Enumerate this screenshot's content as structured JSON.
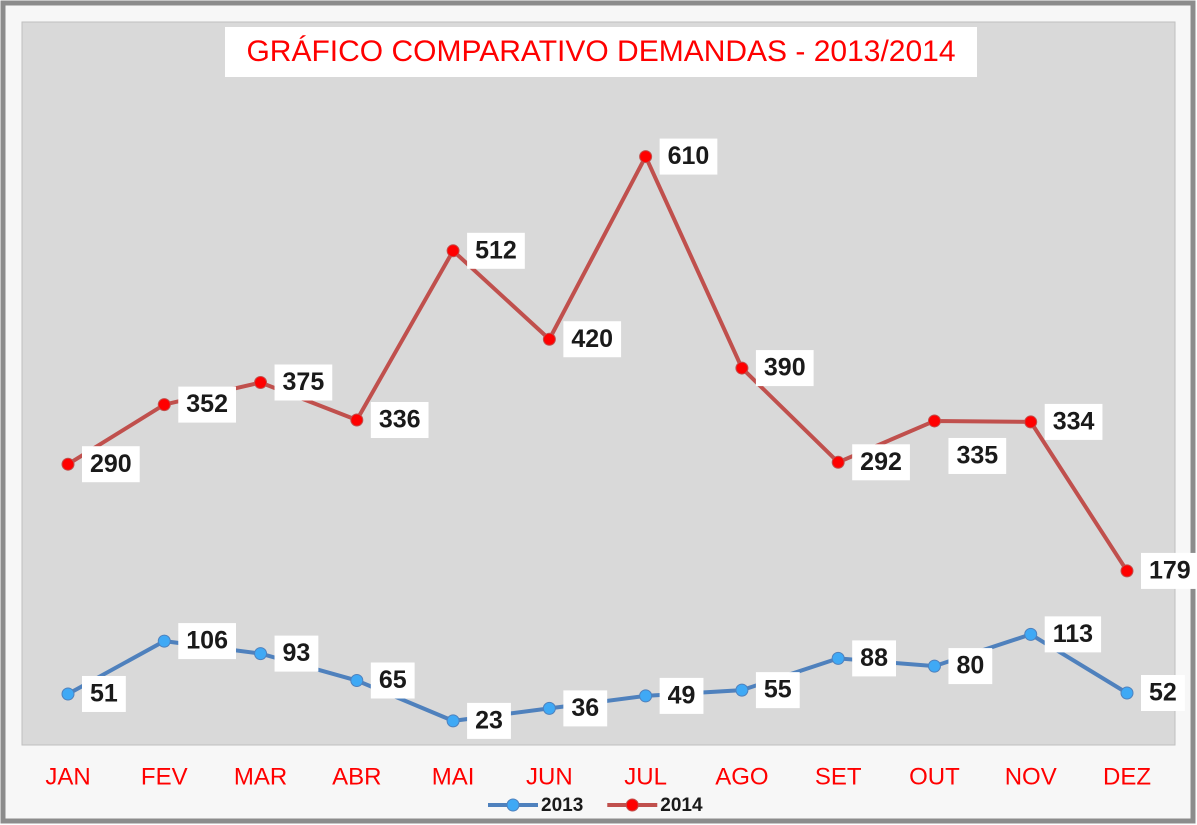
{
  "chart_data": {
    "type": "line",
    "title": "GRÁFICO COMPARATIVO DEMANDAS - 2013/2014",
    "categories": [
      "JAN",
      "FEV",
      "MAR",
      "ABR",
      "MAI",
      "JUN",
      "JUL",
      "AGO",
      "SET",
      "OUT",
      "NOV",
      "DEZ"
    ],
    "series": [
      {
        "name": "2013",
        "color": "#4f81bd",
        "marker_color": "#3fa9f5",
        "values": [
          51,
          106,
          93,
          65,
          23,
          36,
          49,
          55,
          88,
          80,
          113,
          52
        ]
      },
      {
        "name": "2014",
        "color": "#c0504d",
        "marker_color": "#ff0000",
        "values": [
          290,
          352,
          375,
          336,
          512,
          420,
          610,
          390,
          292,
          335,
          334,
          179
        ]
      }
    ],
    "ylim": [
      0,
      750
    ],
    "legend": "bottom"
  }
}
